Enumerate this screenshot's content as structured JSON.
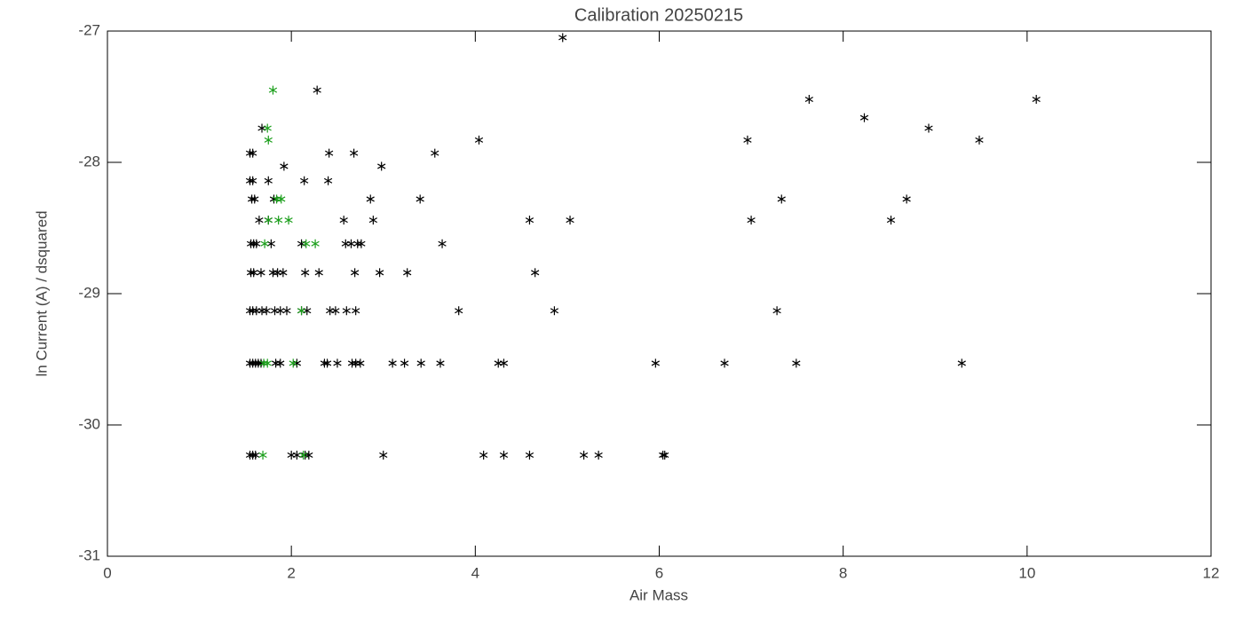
{
  "chart_data": {
    "type": "scatter",
    "title": "Calibration 20250215",
    "x_label": "Air Mass",
    "y_label": "ln Current (A) / dsquared",
    "xlim": [
      0,
      12
    ],
    "ylim": [
      -31,
      -27
    ],
    "xticks": [
      0,
      2,
      4,
      6,
      8,
      10,
      12
    ],
    "yticks": [
      -31,
      -30,
      -29,
      -28,
      -27
    ],
    "series": [
      {
        "color": "#000000",
        "x": [
          1.55,
          1.58,
          1.61,
          2.0,
          2.06,
          2.15,
          2.19,
          3.0,
          4.09,
          4.31,
          4.59,
          5.18,
          5.34,
          6.04,
          6.06,
          1.55,
          1.58,
          1.61,
          1.64,
          1.67,
          1.83,
          1.88,
          2.06,
          2.36,
          2.39,
          2.5,
          2.66,
          2.7,
          2.75,
          3.1,
          3.23,
          3.41,
          3.62,
          4.25,
          4.31,
          5.96,
          6.71,
          7.49,
          9.29,
          1.55,
          1.58,
          1.62,
          1.68,
          1.73,
          1.82,
          1.88,
          1.95,
          2.11,
          2.17,
          2.42,
          2.48,
          2.6,
          2.7,
          3.82,
          4.86,
          7.28,
          1.56,
          1.59,
          1.67,
          1.8,
          1.85,
          1.91,
          2.15,
          2.3,
          2.69,
          2.96,
          3.26,
          4.65,
          1.56,
          1.59,
          1.62,
          1.78,
          2.11,
          2.59,
          2.65,
          2.72,
          2.76,
          3.64,
          1.65,
          1.75,
          2.57,
          2.89,
          4.59,
          5.03,
          7.0,
          8.52,
          1.57,
          1.6,
          1.81,
          2.86,
          3.4,
          7.33,
          8.69,
          1.55,
          1.58,
          1.75,
          2.14,
          2.4,
          1.92,
          2.98,
          1.55,
          1.58,
          2.41,
          2.68,
          3.56,
          4.04,
          6.96,
          9.48,
          1.68,
          8.93,
          8.23,
          7.63,
          10.1,
          2.28,
          4.95
        ],
        "values": [
          -30.23,
          -30.23,
          -30.23,
          -30.23,
          -30.23,
          -30.23,
          -30.23,
          -30.23,
          -30.23,
          -30.23,
          -30.23,
          -30.23,
          -30.23,
          -30.23,
          -30.23,
          -29.53,
          -29.53,
          -29.53,
          -29.53,
          -29.53,
          -29.53,
          -29.53,
          -29.53,
          -29.53,
          -29.53,
          -29.53,
          -29.53,
          -29.53,
          -29.53,
          -29.53,
          -29.53,
          -29.53,
          -29.53,
          -29.53,
          -29.53,
          -29.53,
          -29.53,
          -29.53,
          -29.53,
          -29.13,
          -29.13,
          -29.13,
          -29.13,
          -29.13,
          -29.13,
          -29.13,
          -29.13,
          -29.13,
          -29.13,
          -29.13,
          -29.13,
          -29.13,
          -29.13,
          -29.13,
          -29.13,
          -29.13,
          -28.84,
          -28.84,
          -28.84,
          -28.84,
          -28.84,
          -28.84,
          -28.84,
          -28.84,
          -28.84,
          -28.84,
          -28.84,
          -28.84,
          -28.62,
          -28.62,
          -28.62,
          -28.62,
          -28.62,
          -28.62,
          -28.62,
          -28.62,
          -28.62,
          -28.62,
          -28.44,
          -28.44,
          -28.44,
          -28.44,
          -28.44,
          -28.44,
          -28.44,
          -28.44,
          -28.28,
          -28.28,
          -28.28,
          -28.28,
          -28.28,
          -28.28,
          -28.28,
          -28.14,
          -28.14,
          -28.14,
          -28.14,
          -28.14,
          -28.03,
          -28.03,
          -27.93,
          -27.93,
          -27.93,
          -27.93,
          -27.93,
          -27.83,
          -27.83,
          -27.83,
          -27.74,
          -27.74,
          -27.66,
          -27.52,
          -27.52,
          -27.45,
          -27.05
        ]
      },
      {
        "color": "#1a9e1a",
        "x": [
          1.8,
          1.74,
          1.75,
          1.75,
          1.86,
          1.97,
          1.84,
          1.89,
          1.71,
          2.16,
          2.26,
          2.11,
          1.7,
          1.74,
          2.02,
          1.69,
          2.13
        ],
        "values": [
          -27.45,
          -27.74,
          -27.83,
          -28.44,
          -28.44,
          -28.44,
          -28.28,
          -28.28,
          -28.62,
          -28.62,
          -28.62,
          -29.13,
          -29.53,
          -29.53,
          -29.53,
          -30.23,
          -30.23
        ]
      }
    ]
  }
}
